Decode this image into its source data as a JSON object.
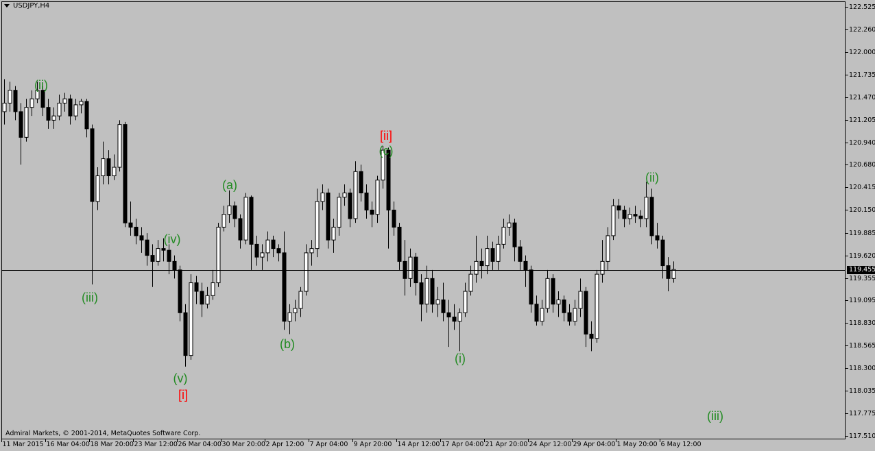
{
  "window": {
    "title": "USDJPY,H4",
    "copyright": "Admiral Markets, © 2001-2014, MetaQuotes Software Corp."
  },
  "chart_data": {
    "type": "candlestick",
    "symbol": "USDJPY",
    "timeframe": "H4",
    "ylim": [
      117.51,
      122.525
    ],
    "current_price": "119.455",
    "y_ticks": [
      "122.525",
      "122.260",
      "122.000",
      "121.735",
      "121.470",
      "121.205",
      "120.940",
      "120.680",
      "120.415",
      "120.150",
      "119.885",
      "119.620",
      "119.355",
      "119.095",
      "118.830",
      "118.565",
      "118.300",
      "118.035",
      "117.775",
      "117.510"
    ],
    "x_ticks": [
      "11 Mar 2015",
      "16 Mar 04:00",
      "18 Mar 20:00",
      "23 Mar 12:00",
      "26 Mar 04:00",
      "30 Mar 20:00",
      "2 Apr 12:00",
      "7 Apr 04:00",
      "9 Apr 20:00",
      "14 Apr 12:00",
      "17 Apr 04:00",
      "21 Apr 20:00",
      "24 Apr 12:00",
      "29 Apr 04:00",
      "1 May 20:00",
      "6 May 12:00"
    ],
    "colors": {
      "background": "#c0c0c0",
      "bull_body": "#ffffff",
      "bear_body": "#000000",
      "wave_green": "#228b22",
      "wave_red": "#ff0000"
    },
    "candles_ohlc": [
      [
        121.3,
        121.68,
        121.15,
        121.4
      ],
      [
        121.4,
        121.65,
        121.3,
        121.55
      ],
      [
        121.55,
        121.6,
        121.2,
        121.3
      ],
      [
        121.3,
        121.4,
        120.68,
        121.0
      ],
      [
        121.0,
        121.45,
        120.95,
        121.35
      ],
      [
        121.35,
        121.55,
        121.25,
        121.45
      ],
      [
        121.45,
        121.65,
        121.4,
        121.55
      ],
      [
        121.55,
        121.6,
        121.25,
        121.35
      ],
      [
        121.35,
        121.45,
        121.1,
        121.2
      ],
      [
        121.2,
        121.35,
        121.1,
        121.25
      ],
      [
        121.25,
        121.5,
        121.2,
        121.4
      ],
      [
        121.4,
        121.52,
        121.3,
        121.45
      ],
      [
        121.45,
        121.5,
        121.15,
        121.25
      ],
      [
        121.25,
        121.45,
        121.2,
        121.38
      ],
      [
        121.38,
        121.45,
        121.28,
        121.42
      ],
      [
        121.42,
        121.45,
        121.0,
        121.1
      ],
      [
        121.1,
        121.15,
        119.28,
        120.25
      ],
      [
        120.25,
        120.65,
        120.15,
        120.55
      ],
      [
        120.55,
        120.95,
        120.45,
        120.75
      ],
      [
        120.75,
        120.85,
        120.45,
        120.55
      ],
      [
        120.55,
        120.8,
        120.5,
        120.65
      ],
      [
        120.65,
        121.2,
        120.6,
        121.15
      ],
      [
        121.15,
        121.18,
        119.95,
        120.0
      ],
      [
        120.0,
        120.25,
        119.85,
        119.95
      ],
      [
        119.95,
        120.05,
        119.75,
        119.85
      ],
      [
        119.85,
        119.95,
        119.65,
        119.8
      ],
      [
        119.8,
        119.88,
        119.5,
        119.62
      ],
      [
        119.62,
        119.75,
        119.25,
        119.55
      ],
      [
        119.55,
        119.8,
        119.5,
        119.7
      ],
      [
        119.7,
        119.82,
        119.55,
        119.68
      ],
      [
        119.68,
        119.75,
        119.4,
        119.55
      ],
      [
        119.55,
        119.62,
        119.35,
        119.45
      ],
      [
        119.45,
        119.5,
        118.85,
        118.95
      ],
      [
        118.95,
        119.05,
        118.32,
        118.45
      ],
      [
        118.45,
        119.4,
        118.4,
        119.3
      ],
      [
        119.3,
        119.38,
        119.05,
        119.2
      ],
      [
        119.2,
        119.3,
        118.9,
        119.05
      ],
      [
        119.05,
        119.25,
        119.0,
        119.15
      ],
      [
        119.15,
        119.45,
        119.1,
        119.3
      ],
      [
        119.3,
        120.0,
        119.25,
        119.95
      ],
      [
        119.95,
        120.2,
        119.9,
        120.1
      ],
      [
        120.1,
        120.38,
        120.0,
        120.2
      ],
      [
        120.2,
        120.25,
        119.95,
        120.05
      ],
      [
        120.05,
        120.1,
        119.7,
        119.8
      ],
      [
        119.8,
        120.35,
        119.75,
        120.3
      ],
      [
        120.3,
        120.32,
        119.45,
        119.75
      ],
      [
        119.75,
        119.85,
        119.5,
        119.6
      ],
      [
        119.6,
        119.75,
        119.45,
        119.65
      ],
      [
        119.65,
        119.9,
        119.55,
        119.8
      ],
      [
        119.8,
        119.85,
        119.6,
        119.7
      ],
      [
        119.7,
        119.75,
        119.55,
        119.65
      ],
      [
        119.65,
        119.9,
        118.75,
        118.85
      ],
      [
        118.85,
        119.05,
        118.7,
        118.95
      ],
      [
        118.95,
        119.1,
        118.85,
        119.0
      ],
      [
        119.0,
        119.25,
        118.9,
        119.2
      ],
      [
        119.2,
        119.75,
        119.15,
        119.65
      ],
      [
        119.65,
        119.8,
        119.5,
        119.7
      ],
      [
        119.7,
        120.4,
        119.6,
        120.25
      ],
      [
        120.25,
        120.45,
        120.15,
        120.35
      ],
      [
        120.35,
        120.4,
        119.7,
        119.8
      ],
      [
        119.8,
        120.05,
        119.65,
        119.95
      ],
      [
        119.95,
        120.35,
        119.85,
        120.3
      ],
      [
        120.3,
        120.45,
        120.2,
        120.35
      ],
      [
        120.35,
        120.4,
        119.95,
        120.05
      ],
      [
        120.05,
        120.72,
        120.0,
        120.6
      ],
      [
        120.6,
        120.68,
        120.25,
        120.35
      ],
      [
        120.35,
        120.45,
        120.05,
        120.15
      ],
      [
        120.15,
        120.25,
        119.95,
        120.1
      ],
      [
        120.1,
        120.55,
        120.0,
        120.5
      ],
      [
        120.5,
        120.9,
        120.4,
        120.85
      ],
      [
        120.85,
        120.88,
        119.7,
        120.15
      ],
      [
        120.15,
        120.25,
        119.85,
        119.95
      ],
      [
        119.95,
        120.0,
        119.45,
        119.55
      ],
      [
        119.55,
        119.8,
        119.15,
        119.35
      ],
      [
        119.35,
        119.7,
        119.25,
        119.6
      ],
      [
        119.6,
        119.65,
        119.15,
        119.3
      ],
      [
        119.3,
        119.4,
        118.85,
        119.05
      ],
      [
        119.05,
        119.5,
        118.95,
        119.35
      ],
      [
        119.35,
        119.45,
        118.95,
        119.05
      ],
      [
        119.05,
        119.25,
        118.9,
        119.1
      ],
      [
        119.1,
        119.3,
        118.85,
        118.95
      ],
      [
        118.95,
        119.1,
        118.55,
        118.9
      ],
      [
        118.9,
        119.05,
        118.75,
        118.85
      ],
      [
        118.85,
        119.0,
        118.5,
        118.95
      ],
      [
        118.95,
        119.3,
        118.9,
        119.2
      ],
      [
        119.2,
        119.5,
        119.15,
        119.4
      ],
      [
        119.4,
        119.85,
        119.3,
        119.55
      ],
      [
        119.55,
        119.7,
        119.35,
        119.5
      ],
      [
        119.5,
        119.85,
        119.4,
        119.7
      ],
      [
        119.7,
        119.78,
        119.45,
        119.55
      ],
      [
        119.55,
        119.85,
        119.45,
        119.75
      ],
      [
        119.75,
        120.05,
        119.7,
        119.95
      ],
      [
        119.95,
        120.1,
        119.85,
        120.0
      ],
      [
        120.0,
        120.05,
        119.55,
        119.72
      ],
      [
        119.72,
        119.8,
        119.45,
        119.55
      ],
      [
        119.55,
        119.62,
        119.25,
        119.45
      ],
      [
        119.45,
        119.5,
        118.95,
        119.05
      ],
      [
        119.05,
        119.15,
        118.8,
        118.85
      ],
      [
        118.85,
        119.1,
        118.8,
        119.0
      ],
      [
        119.0,
        119.45,
        118.95,
        119.35
      ],
      [
        119.35,
        119.4,
        118.95,
        119.05
      ],
      [
        119.05,
        119.2,
        118.9,
        119.1
      ],
      [
        119.1,
        119.15,
        118.85,
        118.95
      ],
      [
        118.95,
        119.05,
        118.8,
        118.85
      ],
      [
        118.85,
        119.1,
        118.8,
        119.0
      ],
      [
        119.0,
        119.35,
        118.9,
        119.2
      ],
      [
        119.2,
        119.25,
        118.55,
        118.7
      ],
      [
        118.7,
        118.85,
        118.5,
        118.65
      ],
      [
        118.65,
        119.45,
        118.6,
        119.4
      ],
      [
        119.4,
        119.8,
        119.3,
        119.55
      ],
      [
        119.55,
        119.95,
        119.45,
        119.85
      ],
      [
        119.85,
        120.28,
        119.8,
        120.2
      ],
      [
        120.2,
        120.28,
        120.05,
        120.15
      ],
      [
        120.15,
        120.2,
        119.95,
        120.05
      ],
      [
        120.05,
        120.18,
        119.98,
        120.1
      ],
      [
        120.1,
        120.2,
        120.0,
        120.08
      ],
      [
        120.08,
        120.15,
        119.95,
        120.05
      ],
      [
        120.05,
        120.48,
        119.95,
        120.3
      ],
      [
        120.3,
        120.4,
        119.75,
        119.85
      ],
      [
        119.85,
        120.0,
        119.7,
        119.8
      ],
      [
        119.8,
        119.85,
        119.35,
        119.5
      ],
      [
        119.5,
        119.6,
        119.2,
        119.35
      ],
      [
        119.35,
        119.55,
        119.3,
        119.455
      ]
    ],
    "wave_labels": [
      {
        "text": "(ii)",
        "color": "green"
      },
      {
        "text": "(iii)",
        "color": "green"
      },
      {
        "text": "(iv)",
        "color": "green"
      },
      {
        "text": "(v)",
        "color": "green"
      },
      {
        "text": "[i]",
        "color": "red"
      },
      {
        "text": "(a)",
        "color": "green"
      },
      {
        "text": "(b)",
        "color": "green"
      },
      {
        "text": "[ii]",
        "color": "red"
      },
      {
        "text": "(c)",
        "color": "green"
      },
      {
        "text": "(i)",
        "color": "green"
      },
      {
        "text": "(ii)",
        "color": "green"
      },
      {
        "text": "(iii)",
        "color": "green"
      }
    ]
  }
}
